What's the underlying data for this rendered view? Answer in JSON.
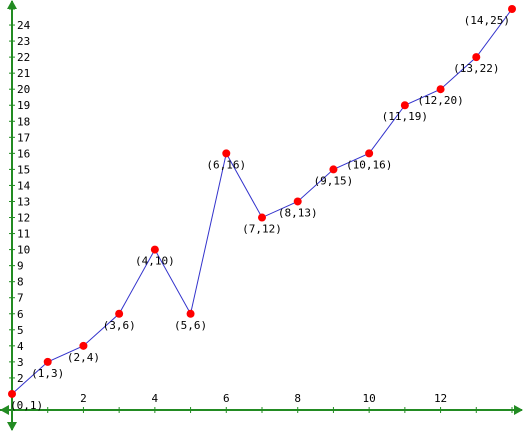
{
  "chart_data": {
    "type": "line",
    "title": "",
    "xlabel": "",
    "ylabel": "",
    "xlim": [
      0,
      14
    ],
    "ylim": [
      0,
      25
    ],
    "x_ticks": [
      2,
      4,
      6,
      8,
      10,
      12
    ],
    "y_ticks": [
      2,
      3,
      4,
      5,
      6,
      7,
      8,
      9,
      10,
      11,
      12,
      13,
      14,
      15,
      16,
      17,
      18,
      19,
      20,
      21,
      22,
      23,
      24
    ],
    "grid": false,
    "legend": "none",
    "series": [
      {
        "points": [
          {
            "x": 0,
            "y": 1,
            "label": "(0,1)"
          },
          {
            "x": 1,
            "y": 3,
            "label": "(1,3)"
          },
          {
            "x": 2,
            "y": 4,
            "label": "(2,4)"
          },
          {
            "x": 3,
            "y": 6,
            "label": "(3,6)"
          },
          {
            "x": 4,
            "y": 10,
            "label": "(4,10)"
          },
          {
            "x": 5,
            "y": 6,
            "label": "(5,6)"
          },
          {
            "x": 6,
            "y": 16,
            "label": "(6,16)"
          },
          {
            "x": 7,
            "y": 12,
            "label": "(7,12)"
          },
          {
            "x": 8,
            "y": 13,
            "label": "(8,13)"
          },
          {
            "x": 9,
            "y": 15,
            "label": "(9,15)"
          },
          {
            "x": 10,
            "y": 16,
            "label": "(10,16)"
          },
          {
            "x": 11,
            "y": 19,
            "label": "(11,19)"
          },
          {
            "x": 12,
            "y": 20,
            "label": "(12,20)"
          },
          {
            "x": 13,
            "y": 22,
            "label": "(13,22)"
          },
          {
            "x": 14,
            "y": 25,
            "label": "(14,25)"
          }
        ]
      }
    ],
    "colors": {
      "axis": "#228b22",
      "line": "#3333cc",
      "marker": "#ff0000"
    }
  }
}
